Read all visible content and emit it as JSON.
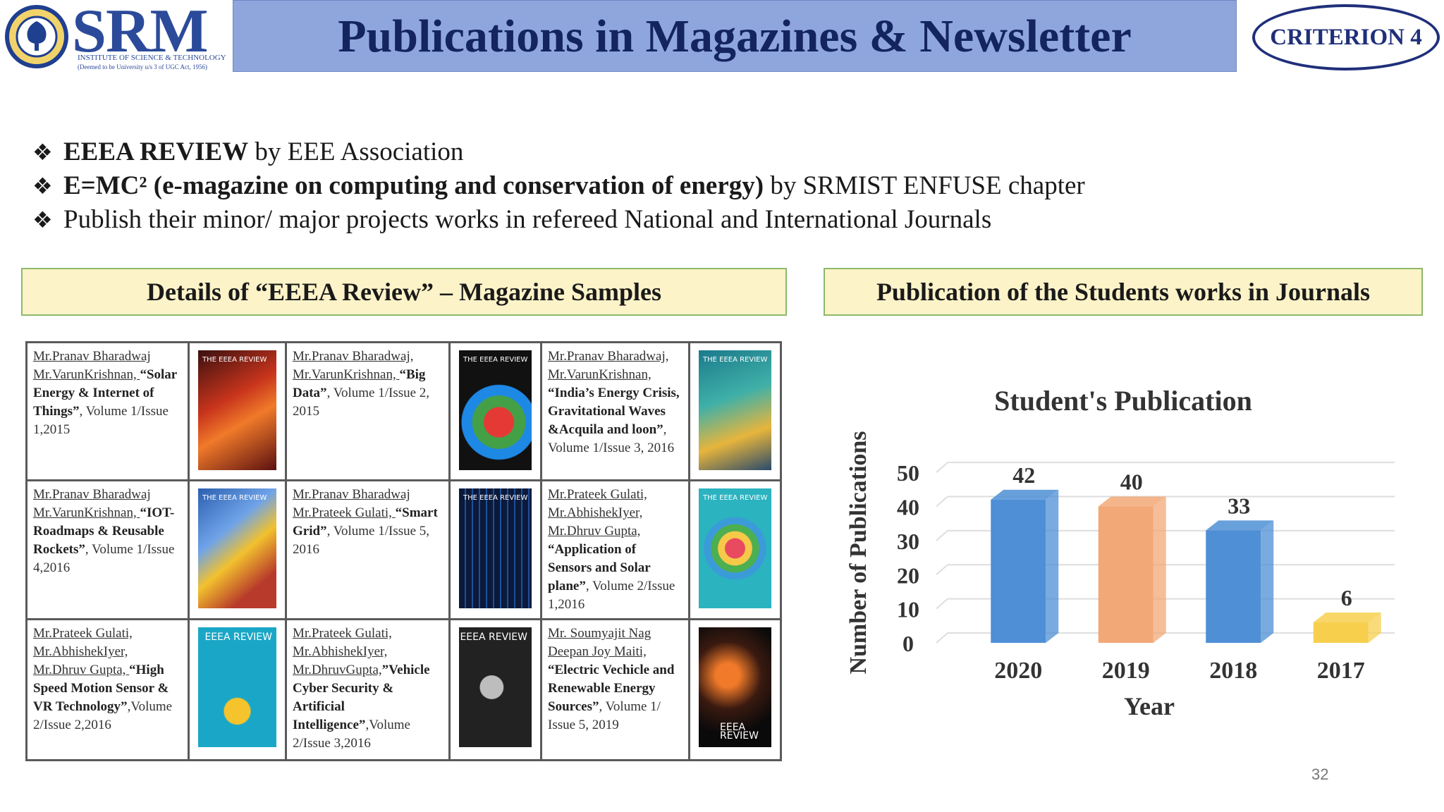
{
  "header": {
    "logo_word": "SRM",
    "logo_sub1": "INSTITUTE OF SCIENCE & TECHNOLOGY",
    "logo_sub2": "(Deemed to be University u/s 3 of UGC Act, 1956)",
    "title": "Publications in Magazines & Newsletter",
    "criterion": "CRITERION 4"
  },
  "bullets": [
    {
      "bold": "EEEA REVIEW",
      "rest": " by EEE Association"
    },
    {
      "bold": "E=MC² (e-magazine on computing and conservation of energy)",
      "rest": " by SRMIST ENFUSE chapter"
    },
    {
      "bold": "",
      "rest": "Publish their minor/ major projects works in refereed National and International Journals"
    }
  ],
  "bullet_mark": "❖",
  "sections": {
    "left": "Details of “EEEA Review” – Magazine Samples",
    "right": "Publication of the Students works  in Journals"
  },
  "magazines": [
    {
      "authors": "Mr.Pranav Bharadwaj Mr.VarunKrishnan, ",
      "title": "“Solar Energy & Internet of Things”",
      "volume": ", Volume 1/Issue 1,2015"
    },
    {
      "authors": "Mr.Pranav Bharadwaj, Mr.VarunKrishnan, ",
      "title": "“Big Data”",
      "volume": ", Volume 1/Issue 2, 2015"
    },
    {
      "authors": "Mr.Pranav Bharadwaj, Mr.VarunKrishnan, ",
      "title": "“India’s Energy Crisis, Gravitational Waves &Acquila and loon”",
      "volume": ", Volume 1/Issue 3, 2016"
    },
    {
      "authors": "Mr.Pranav Bharadwaj Mr.VarunKrishnan, ",
      "title": "“IOT-Roadmaps & Reusable Rockets”",
      "volume": ", Volume 1/Issue 4,2016"
    },
    {
      "authors": "Mr.Pranav Bharadwaj Mr.Prateek Gulati, ",
      "title": "“Smart Grid”",
      "volume": ", Volume 1/Issue 5, 2016"
    },
    {
      "authors": "Mr.Prateek Gulati, Mr.AbhishekIyer, Mr.Dhruv Gupta, ",
      "title": "“Application of Sensors and Solar plane”",
      "volume": ", Volume 2/Issue 1,2016"
    },
    {
      "authors": "Mr.Prateek Gulati, Mr.AbhishekIyer, Mr.Dhruv Gupta, ",
      "title": "“High Speed Motion Sensor & VR Technology”",
      "volume": ",Volume 2/Issue 2,2016"
    },
    {
      "authors": "Mr.Prateek Gulati, Mr.AbhishekIyer, Mr.DhruvGupta,",
      "title": "”Vehicle Cyber Security & Artificial Intelligence”",
      "volume": ",Volume 2/Issue 3,2016"
    },
    {
      "authors": "Mr. Soumyajit Nag Deepan Joy Maiti, ",
      "title": "“Electric Vechicle and Renewable Energy Sources”",
      "volume": ", Volume 1/ Issue 5, 2019"
    }
  ],
  "cover_labels": [
    "THE EEEA REVIEW",
    "EEEA REVIEW"
  ],
  "chart_data": {
    "type": "bar",
    "title": "Student's Publication",
    "xlabel": "Year",
    "ylabel": "Number of Publications",
    "categories": [
      "2020",
      "2019",
      "2018",
      "2017"
    ],
    "values": [
      42,
      40,
      33,
      6
    ],
    "colors": [
      "#4e8fd6",
      "#f2a877",
      "#4e8fd6",
      "#f7cf4d"
    ],
    "yticks": [
      0,
      10,
      20,
      30,
      40,
      50
    ],
    "ylim": [
      0,
      55
    ],
    "grid": true
  },
  "page_number": "32"
}
